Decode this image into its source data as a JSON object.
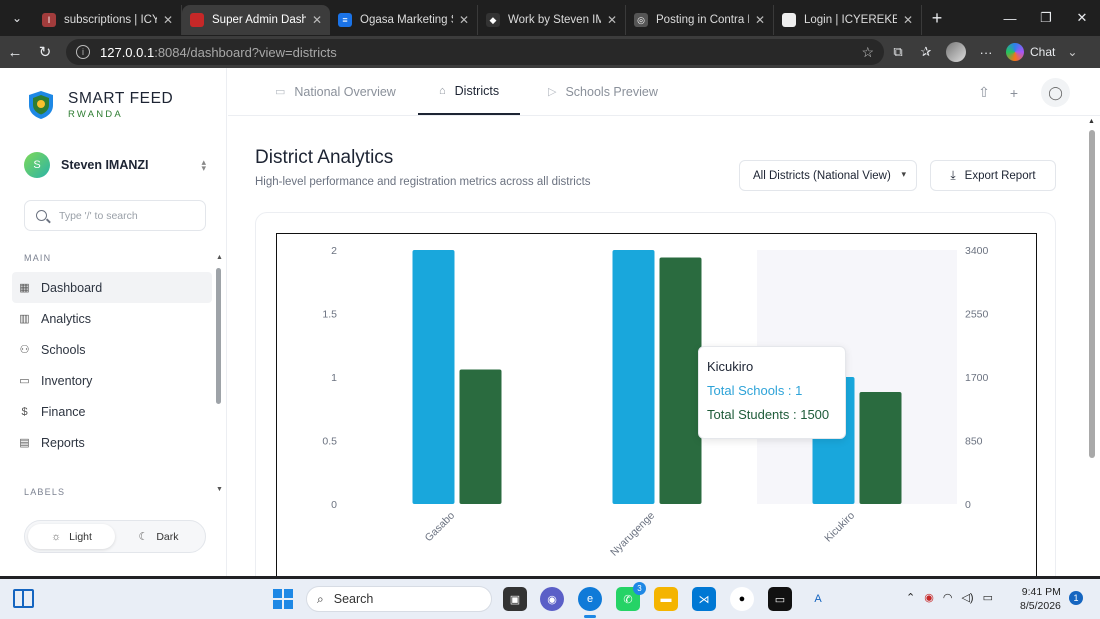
{
  "browser": {
    "tabs": [
      {
        "title": "subscriptions | ICYEREKEZO",
        "fav_color": "#a23c3c",
        "fav_glyph": "I",
        "active": false
      },
      {
        "title": "Super Admin Dashboard",
        "fav_color": "#c62828",
        "fav_glyph": "",
        "active": true
      },
      {
        "title": "Ogasa Marketing Strategy",
        "fav_color": "#1a73e8",
        "fav_glyph": "≡",
        "active": false
      },
      {
        "title": "Work by Steven IMANZI",
        "fav_color": "#333333",
        "fav_glyph": "◆",
        "active": false
      },
      {
        "title": "Posting in Contra Portfolio",
        "fav_color": "#555555",
        "fav_glyph": "◎",
        "active": false
      },
      {
        "title": "Login | ICYEREKEZO Club",
        "fav_color": "#eeeeee",
        "fav_glyph": "",
        "active": false
      }
    ],
    "url_host": "127.0.0.1",
    "url_path": ":8084/dashboard?view=districts",
    "chat_label": "Chat"
  },
  "sidebar": {
    "brand_name": "SMART FEED",
    "brand_sub": "RWANDA",
    "user_initial": "S",
    "user_name": "Steven IMANZI",
    "search_placeholder": "Type '/' to search",
    "section_main": "MAIN",
    "items": [
      {
        "label": "Dashboard",
        "icon": "grid-icon"
      },
      {
        "label": "Analytics",
        "icon": "bar-chart-icon"
      },
      {
        "label": "Schools",
        "icon": "users-icon"
      },
      {
        "label": "Inventory",
        "icon": "folder-icon"
      },
      {
        "label": "Finance",
        "icon": "dollar-icon"
      },
      {
        "label": "Reports",
        "icon": "file-icon"
      }
    ],
    "section_labels": "LABELS",
    "theme_light": "Light",
    "theme_dark": "Dark"
  },
  "top_tabs": [
    {
      "label": "National Overview",
      "icon": "folder-icon"
    },
    {
      "label": "Districts",
      "icon": "archive-icon"
    },
    {
      "label": "Schools Preview",
      "icon": "play-icon"
    }
  ],
  "main": {
    "title": "District Analytics",
    "subtitle": "High-level performance and registration metrics across all districts",
    "district_select": "All Districts (National View)",
    "export_label": "Export Report"
  },
  "chart_data": {
    "type": "bar",
    "categories": [
      "Gasabo",
      "Nyarugenge",
      "Kicukiro"
    ],
    "series": [
      {
        "name": "Total Schools",
        "axis": "left",
        "color": "#19a7dc",
        "values": [
          2,
          2,
          1
        ]
      },
      {
        "name": "Total Students",
        "axis": "right",
        "color": "#2a6b3f",
        "values": [
          1800,
          3300,
          1500
        ]
      }
    ],
    "y_left": {
      "ticks": [
        "0",
        "0.5",
        "1",
        "1.5",
        "2"
      ],
      "range": [
        0,
        2
      ]
    },
    "y_right": {
      "ticks": [
        "0",
        "850",
        "1700",
        "2550",
        "3400"
      ],
      "range": [
        0,
        3400
      ]
    },
    "highlighted_category": "Kicukiro",
    "grid": false
  },
  "tooltip": {
    "title": "Kicukiro",
    "line1": "Total Schools : 1",
    "line2": "Total Students : 1500"
  },
  "taskbar": {
    "search_label": "Search",
    "whatsapp_badge": "3",
    "time": "9:41 PM",
    "date": "8/5/2026",
    "notifications": "1"
  }
}
